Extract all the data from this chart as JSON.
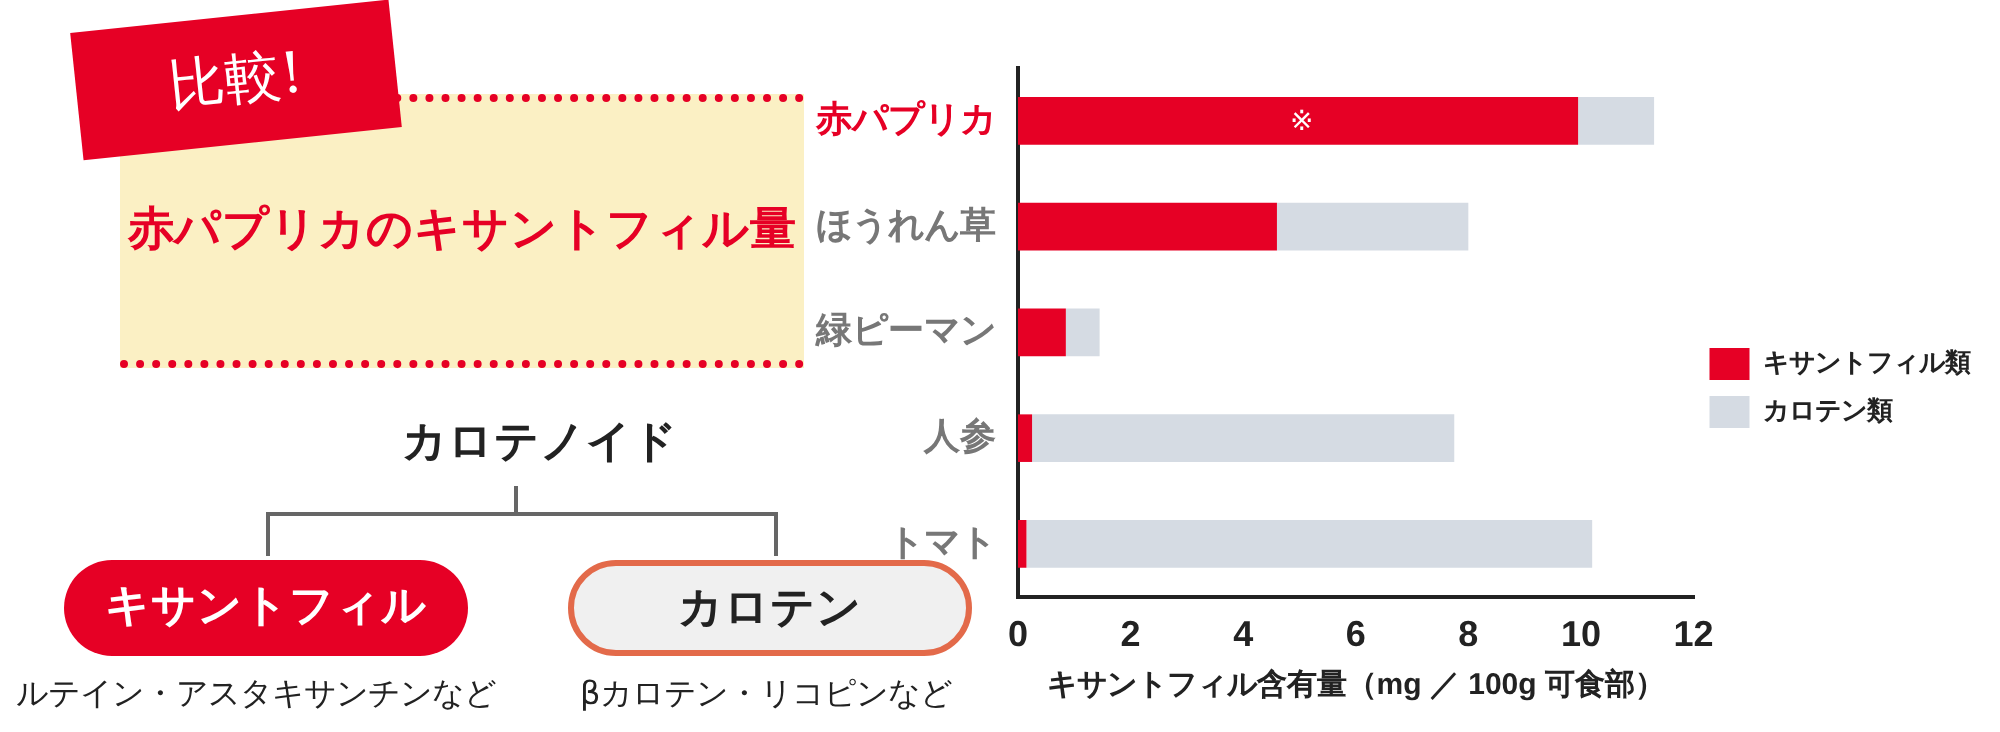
{
  "chart_data": {
    "type": "bar",
    "orientation": "horizontal",
    "stacked": true,
    "title": "赤パプリカのキサントフィル量",
    "xlabel": "キサントフィル含有量（mg ／ 100g 可食部）",
    "categories": [
      "赤パプリカ",
      "ほうれん草",
      "緑ピーマン",
      "人参",
      "トマト"
    ],
    "series": [
      {
        "name": "キサントフィル類",
        "color": "#e60025",
        "values": [
          9.95,
          4.6,
          0.85,
          0.25,
          0.15
        ]
      },
      {
        "name": "カロテン類",
        "color": "#d5dbe3",
        "values": [
          1.35,
          3.4,
          0.6,
          7.5,
          10.05
        ]
      }
    ],
    "xlim": [
      0,
      12
    ],
    "xticks": [
      0,
      2,
      4,
      6,
      8,
      10,
      12
    ],
    "grid": false,
    "legend": "right",
    "annotations": [
      "比較!",
      "カロテノイド",
      "キサントフィル",
      "ルテイン・アスタキサンチンなど",
      "カロテン",
      "βカロテン・リコピンなど",
      "※"
    ]
  }
}
